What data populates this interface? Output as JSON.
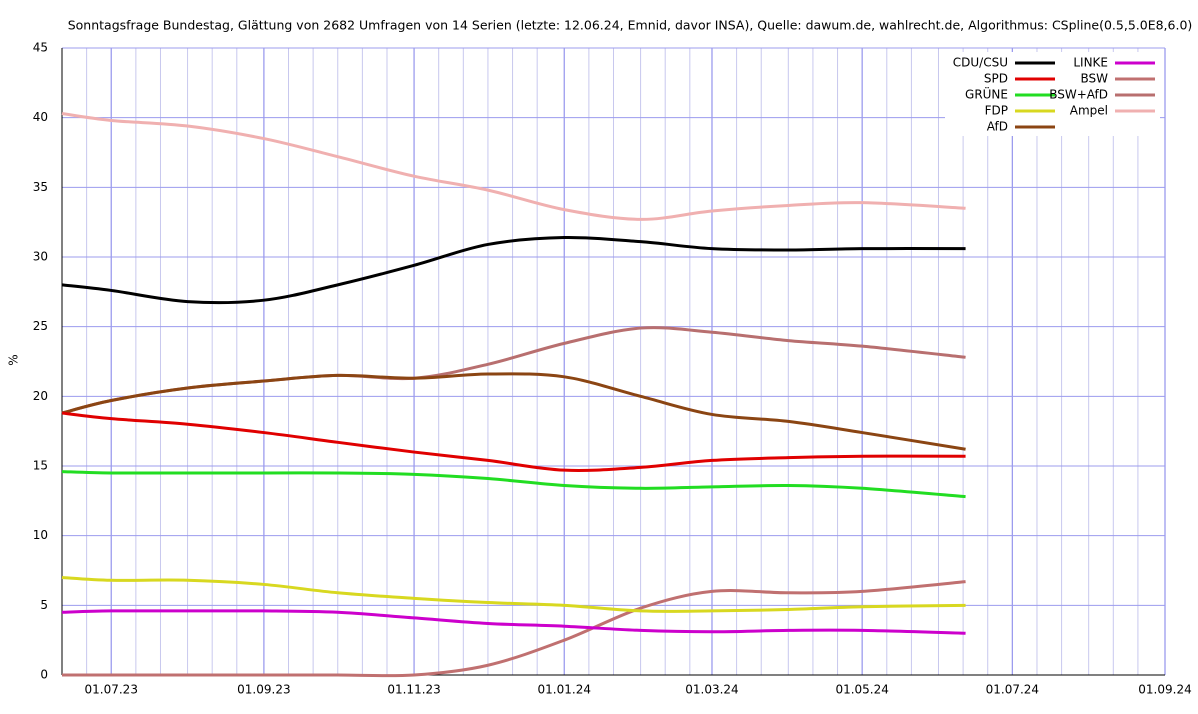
{
  "chart_data": {
    "type": "line",
    "title": "Sonntagsfrage Bundestag, Glättung von 2682 Umfragen von 14 Serien (letzte: 12.06.24, Emnid, davor INSA), Quelle: dawum.de, wahlrecht.de, Algorithmus: CSpline(0.5,5.0E8,6.0)",
    "y_label": "%",
    "x": [
      "2023-06-11",
      "2023-07-01",
      "2023-08-01",
      "2023-09-01",
      "2023-10-01",
      "2023-11-01",
      "2023-12-01",
      "2024-01-01",
      "2024-02-01",
      "2024-03-01",
      "2024-04-01",
      "2024-05-01",
      "2024-06-12"
    ],
    "series": [
      {
        "name": "CDU/CSU",
        "color": "#000000",
        "values": [
          28.0,
          27.6,
          26.8,
          26.9,
          28.0,
          29.4,
          30.9,
          31.4,
          31.1,
          30.6,
          30.5,
          30.6,
          30.6
        ]
      },
      {
        "name": "SPD",
        "color": "#e00000",
        "values": [
          18.8,
          18.4,
          18.0,
          17.4,
          16.7,
          16.0,
          15.4,
          14.7,
          14.9,
          15.4,
          15.6,
          15.7,
          15.7
        ]
      },
      {
        "name": "GRÜNE",
        "color": "#22dd22",
        "values": [
          14.6,
          14.5,
          14.5,
          14.5,
          14.5,
          14.4,
          14.1,
          13.6,
          13.4,
          13.5,
          13.6,
          13.4,
          12.8
        ]
      },
      {
        "name": "FDP",
        "color": "#d8d820",
        "values": [
          7.0,
          6.8,
          6.8,
          6.5,
          5.9,
          5.5,
          5.2,
          5.0,
          4.6,
          4.6,
          4.7,
          4.9,
          5.0
        ]
      },
      {
        "name": "AfD",
        "color": "#8b4513",
        "values": [
          18.8,
          19.7,
          20.6,
          21.1,
          21.5,
          21.3,
          21.6,
          21.4,
          20.0,
          18.7,
          18.2,
          17.4,
          16.2
        ]
      },
      {
        "name": "LINKE",
        "color": "#cc00cc",
        "values": [
          4.5,
          4.6,
          4.6,
          4.6,
          4.5,
          4.1,
          3.7,
          3.5,
          3.2,
          3.1,
          3.2,
          3.2,
          3.0
        ]
      },
      {
        "name": "BSW",
        "color": "#c07070",
        "values": [
          0,
          0,
          0,
          0,
          0,
          0,
          0.7,
          2.5,
          4.8,
          6.0,
          5.9,
          6.0,
          6.7
        ]
      },
      {
        "name": "BSW+AfD",
        "color": "#b86f6f",
        "values": [
          18.8,
          19.7,
          20.6,
          21.1,
          21.5,
          21.3,
          22.3,
          23.8,
          24.9,
          24.6,
          24.0,
          23.6,
          22.8
        ]
      },
      {
        "name": "Ampel",
        "color": "#f0b0b0",
        "values": [
          40.3,
          39.8,
          39.4,
          38.5,
          37.2,
          35.8,
          34.8,
          33.4,
          32.7,
          33.3,
          33.7,
          33.9,
          33.5
        ]
      }
    ],
    "xlim": [
      "2023-06-11",
      "2024-09-01"
    ],
    "xticks": [
      {
        "value": "2023-07-01",
        "label": "01.07.23"
      },
      {
        "value": "2023-09-01",
        "label": "01.09.23"
      },
      {
        "value": "2023-11-01",
        "label": "01.11.23"
      },
      {
        "value": "2024-01-01",
        "label": "01.01.24"
      },
      {
        "value": "2024-03-01",
        "label": "01.03.24"
      },
      {
        "value": "2024-05-01",
        "label": "01.05.24"
      },
      {
        "value": "2024-07-01",
        "label": "01.07.24"
      },
      {
        "value": "2024-09-01",
        "label": "01.09.24"
      }
    ],
    "xminorticks": [
      "2023-06-21",
      "2023-07-11",
      "2023-07-21",
      "2023-08-01",
      "2023-08-11",
      "2023-08-21",
      "2023-09-11",
      "2023-09-21",
      "2023-10-01",
      "2023-10-11",
      "2023-10-21",
      "2023-11-11",
      "2023-11-21",
      "2023-12-01",
      "2023-12-11",
      "2023-12-21",
      "2024-01-11",
      "2024-01-21",
      "2024-02-01",
      "2024-02-11",
      "2024-02-21",
      "2024-03-11",
      "2024-03-21",
      "2024-04-01",
      "2024-04-11",
      "2024-04-21",
      "2024-05-11",
      "2024-05-21",
      "2024-06-01",
      "2024-06-11",
      "2024-06-21",
      "2024-07-11",
      "2024-07-21",
      "2024-08-01",
      "2024-08-11",
      "2024-08-21"
    ],
    "ylim": [
      0,
      45
    ],
    "yticks": [
      0,
      5,
      10,
      15,
      20,
      25,
      30,
      35,
      40,
      45
    ],
    "grid": true,
    "legend": "upper right"
  }
}
